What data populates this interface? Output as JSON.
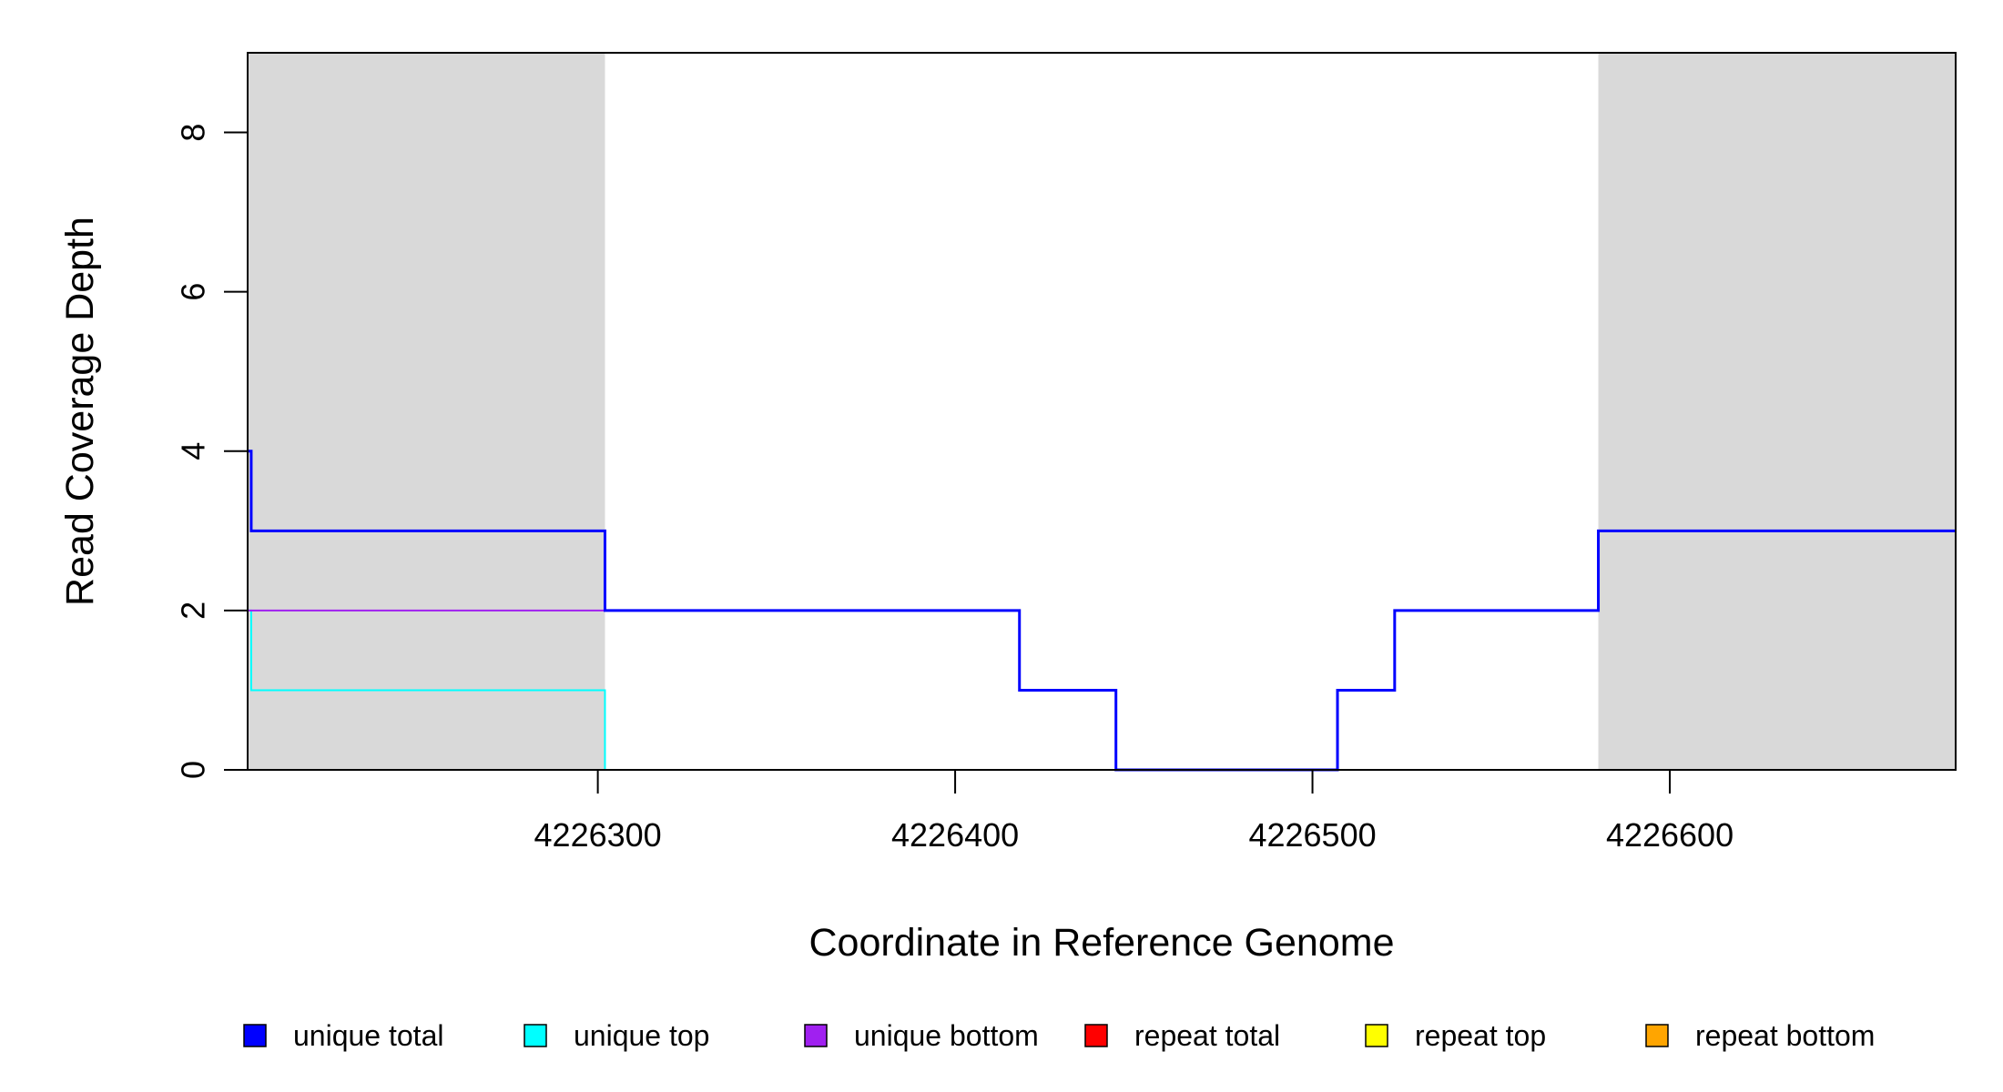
{
  "chart_data": {
    "type": "line",
    "title": "",
    "xlabel": "Coordinate in Reference Genome",
    "ylabel": "Read Coverage Depth",
    "xlim": [
      4226202,
      4226680
    ],
    "ylim": [
      0,
      9
    ],
    "x_ticks": [
      4226300,
      4226400,
      4226500,
      4226600
    ],
    "x_tick_labels": [
      "4226300",
      "4226400",
      "4226500",
      "4226600"
    ],
    "y_ticks": [
      0,
      2,
      4,
      6,
      8
    ],
    "y_tick_labels": [
      "0",
      "2",
      "4",
      "6",
      "8"
    ],
    "grid": false,
    "shaded_regions": [
      {
        "start": 4226202,
        "end": 4226302,
        "color": "#d9d9d9"
      },
      {
        "start": 4226580,
        "end": 4226680,
        "color": "#d9d9d9"
      }
    ],
    "series": [
      {
        "name": "unique total",
        "color": "#0000ff",
        "x": [
          4226197,
          4226203,
          4226302,
          4226418,
          4226445,
          4226507,
          4226523,
          4226580
        ],
        "y": [
          4,
          3,
          2,
          1,
          0,
          1,
          2,
          3
        ]
      },
      {
        "name": "unique top",
        "color": "#00ffff",
        "x": [
          4226197,
          4226203,
          4226302
        ],
        "y": [
          2,
          1,
          0
        ]
      },
      {
        "name": "unique bottom",
        "color": "#a020f0",
        "x": [
          4226197,
          4226302,
          4226418,
          4226445,
          4226507,
          4226523,
          4226580
        ],
        "y": [
          2,
          2,
          1,
          0,
          1,
          2,
          3
        ]
      },
      {
        "name": "repeat total",
        "color": "#ff0000",
        "x": [
          4226197
        ],
        "y": [
          0
        ]
      },
      {
        "name": "repeat top",
        "color": "#ffff00",
        "x": [
          4226197
        ],
        "y": [
          0
        ]
      },
      {
        "name": "repeat bottom",
        "color": "#ffa500",
        "x": [
          4226197
        ],
        "y": [
          0
        ]
      }
    ],
    "legend_position": "bottom"
  }
}
